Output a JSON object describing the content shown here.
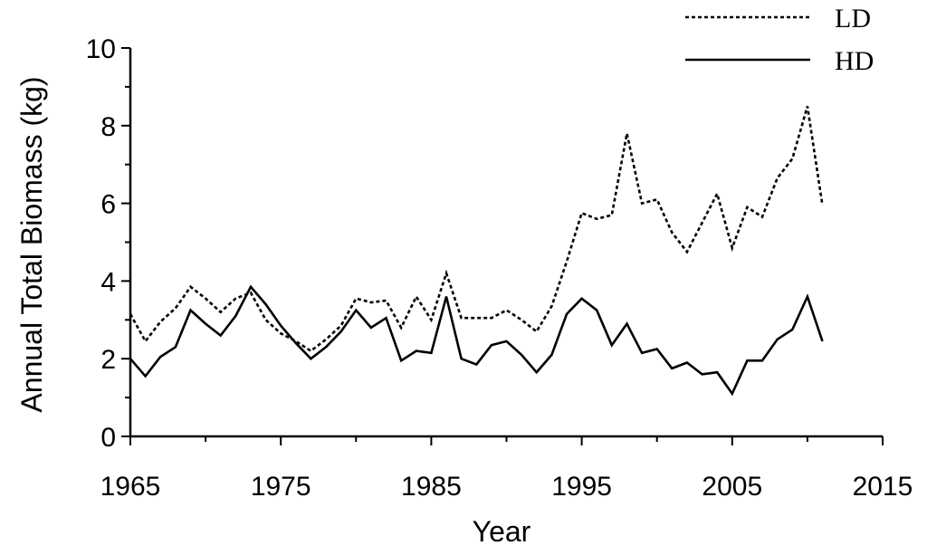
{
  "chart_data": {
    "type": "line",
    "title": "",
    "xlabel": "Year",
    "ylabel": "Annual Total Biomass (kg)",
    "xlim": [
      1965,
      2015
    ],
    "ylim": [
      0,
      10
    ],
    "xticks": [
      "1965",
      "1975",
      "1985",
      "1995",
      "2005",
      "2015"
    ],
    "yticks": [
      "0",
      "2",
      "4",
      "6",
      "8",
      "10"
    ],
    "grid": false,
    "legend_position": "top-right",
    "x": [
      1965,
      1966,
      1967,
      1968,
      1969,
      1970,
      1971,
      1972,
      1973,
      1974,
      1975,
      1976,
      1977,
      1978,
      1979,
      1980,
      1981,
      1982,
      1983,
      1984,
      1985,
      1986,
      1987,
      1988,
      1989,
      1990,
      1991,
      1992,
      1993,
      1994,
      1995,
      1996,
      1997,
      1998,
      1999,
      2000,
      2001,
      2002,
      2003,
      2004,
      2005,
      2006,
      2007,
      2008,
      2009,
      2010,
      2011
    ],
    "series": [
      {
        "name": "LD",
        "style": "dotted",
        "color": "#000000",
        "values": [
          3.15,
          2.45,
          2.95,
          3.3,
          3.85,
          3.55,
          3.2,
          3.55,
          3.7,
          3.0,
          2.65,
          2.45,
          2.2,
          2.5,
          2.85,
          3.55,
          3.45,
          3.5,
          2.8,
          3.6,
          3.0,
          4.2,
          3.05,
          3.05,
          3.05,
          3.25,
          3.0,
          2.7,
          3.35,
          4.5,
          5.75,
          5.6,
          5.7,
          7.8,
          6.0,
          6.1,
          5.25,
          4.75,
          5.5,
          6.25,
          4.85,
          5.9,
          5.65,
          6.65,
          7.15,
          8.5,
          5.95
        ]
      },
      {
        "name": "HD",
        "style": "solid",
        "color": "#000000",
        "values": [
          2.0,
          1.55,
          2.05,
          2.3,
          3.25,
          2.9,
          2.6,
          3.1,
          3.85,
          3.4,
          2.85,
          2.4,
          2.0,
          2.3,
          2.7,
          3.25,
          2.8,
          3.05,
          1.95,
          2.2,
          2.15,
          3.6,
          2.0,
          1.85,
          2.35,
          2.45,
          2.1,
          1.65,
          2.1,
          3.15,
          3.55,
          3.25,
          2.35,
          2.9,
          2.15,
          2.25,
          1.75,
          1.9,
          1.6,
          1.65,
          1.1,
          1.95,
          1.95,
          2.5,
          2.75,
          3.6,
          2.45
        ]
      }
    ]
  }
}
